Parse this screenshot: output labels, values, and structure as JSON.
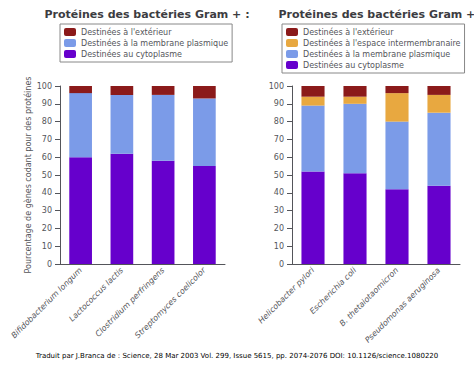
{
  "chart_data": [
    {
      "type": "bar",
      "title": "Protéines des bactéries Gram + :",
      "ylabel": "Pourcentage de gènes codant pour des protéines",
      "categories": [
        "Bifidobacterium longum",
        "Lactococcus lactis",
        "Clostridium perfringens",
        "Streptomyces coelicolor"
      ],
      "series": [
        {
          "name": "Destinées au cytoplasme",
          "color": "#6600CC",
          "values": [
            60,
            62,
            58,
            55
          ]
        },
        {
          "name": "Destinées à la membrane plasmique",
          "color": "#7B9BE8",
          "values": [
            36,
            33,
            37,
            38
          ]
        },
        {
          "name": "Destinées à l'extérieur",
          "color": "#8B1A1A",
          "values": [
            4,
            5,
            5,
            7
          ]
        }
      ],
      "ylim": [
        0,
        100
      ],
      "yticks": [
        0,
        10,
        20,
        30,
        40,
        50,
        60,
        70,
        80,
        90,
        100
      ],
      "stacked": true,
      "grid": false,
      "legend": "top",
      "annotations": [
        "Traduit par J.Branca de : Science, 28 Mar 2003 Vol. 299, Issue 5615, pp. 2074-2076 DOI: 10.1126/science.1080220"
      ]
    },
    {
      "type": "bar",
      "title": "Protéines des bactéries Gram + :",
      "categories": [
        "Helicobacter pylori",
        "Escherichia coli",
        "B. thetaiotaomicron",
        "Pseudomonas aeruginosa"
      ],
      "series": [
        {
          "name": "Destinées au cytoplasme",
          "color": "#6600CC",
          "values": [
            52,
            51,
            42,
            44
          ]
        },
        {
          "name": "Destinées à la membrane plasmique",
          "color": "#7B9BE8",
          "values": [
            37,
            39,
            38,
            41
          ]
        },
        {
          "name": "Destinées à l'espace intermembranaire",
          "color": "#E8A840",
          "values": [
            5,
            4,
            16,
            10
          ]
        },
        {
          "name": "Destinées à l'extérieur",
          "color": "#8B1A1A",
          "values": [
            6,
            6,
            4,
            5
          ]
        }
      ],
      "ylim": [
        0,
        100
      ],
      "yticks": [
        0,
        10,
        20,
        30,
        40,
        50,
        60,
        70,
        80,
        90,
        100
      ],
      "stacked": true,
      "grid": false,
      "legend": "top"
    }
  ]
}
